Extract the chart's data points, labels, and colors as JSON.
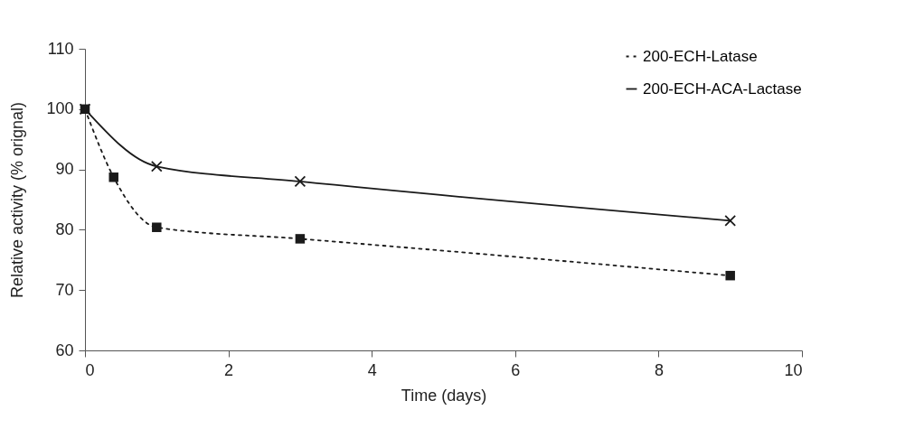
{
  "chart_data": {
    "type": "line",
    "xlabel": "Time (days)",
    "ylabel": "Relative activity (% orignal)",
    "xlim": [
      0,
      10
    ],
    "xticks": [
      0,
      2,
      4,
      6,
      8,
      10
    ],
    "ylim": [
      60,
      110
    ],
    "yticks": [
      60,
      70,
      80,
      90,
      100,
      110
    ],
    "grid": false,
    "legend": "top right",
    "series": [
      {
        "name": "200-ECH-Latase",
        "color": "#1a1a1a",
        "marker": "square",
        "line_style": "dotted",
        "x": [
          0,
          0.4,
          1,
          3,
          9
        ],
        "values": [
          100,
          88.7,
          80.4,
          78.5,
          72.4
        ]
      },
      {
        "name": "200-ECH-ACA-Lactase",
        "color": "#1a1a1a",
        "marker": "cross",
        "line_style": "solid",
        "x": [
          0,
          1,
          3,
          9
        ],
        "values": [
          100,
          90.5,
          88.0,
          81.5
        ]
      }
    ]
  }
}
